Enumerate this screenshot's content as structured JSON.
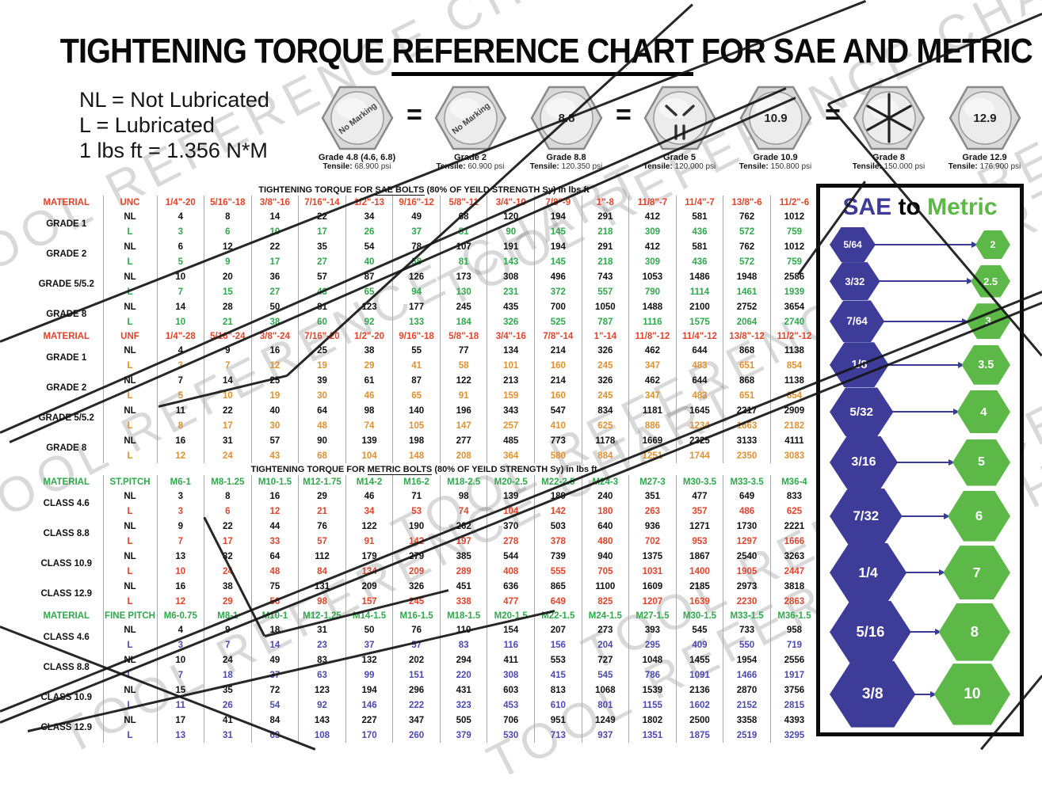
{
  "title": {
    "pre": "TIGHTENING TORQUE ",
    "underline": "REFERENCE CHART",
    "post": " FOR SAE AND METRIC BOLTS"
  },
  "legend": {
    "line1": "NL = Not Lubricated",
    "line2": "L = Lubricated",
    "line3": "1 lbs ft = 1.356 N*M"
  },
  "watermark": {
    "text": "TOOL REFERENCE CHART"
  },
  "bolts": [
    {
      "marking": "No Marking",
      "mark_style": "label-rotated",
      "grade": "Grade 4.8 (4.6, 6.8)",
      "tensile_label": "Tensile:",
      "tensile": "68.900 psi",
      "eq_after": true
    },
    {
      "marking": "No Marking",
      "mark_style": "label-rotated",
      "grade": "Grade 2",
      "tensile_label": "Tensile:",
      "tensile": "60.900 psi",
      "eq_after": false
    },
    {
      "marking": "8.8",
      "mark_style": "label",
      "grade": "Grade 8.8",
      "tensile_label": "Tensile:",
      "tensile": "120.350 psi",
      "eq_after": true
    },
    {
      "marking": "3 radial dashes",
      "mark_style": "marks-3",
      "grade": "Grade 5",
      "tensile_label": "Tensile:",
      "tensile": "120.000 psi",
      "eq_after": false
    },
    {
      "marking": "10.9",
      "mark_style": "label",
      "grade": "Grade 10.9",
      "tensile_label": "Tensile:",
      "tensile": "150.800 psi",
      "eq_after": true
    },
    {
      "marking": "6 radial dashes",
      "mark_style": "marks-6",
      "grade": "Grade 8",
      "tensile_label": "Tensile:",
      "tensile": "150.000 psi",
      "eq_after": false
    },
    {
      "marking": "12.9",
      "mark_style": "label",
      "grade": "Grade 12.9",
      "tensile_label": "Tensile:",
      "tensile": "176.900 psi",
      "eq_after": false
    }
  ],
  "table": {
    "row_labels": {
      "nl": "NL",
      "l": "L"
    },
    "colors": {
      "sae_header": "#e2442b",
      "metric_header": "#2fa94c",
      "unc_l": "#2fa94c",
      "unf_l": "#e09130",
      "st_l": "#e2442b",
      "fine_l": "#4c49b0",
      "nl_text": "#111111"
    },
    "sections": [
      {
        "title": {
          "pre": "TIGHTENING TORQUE FOR ",
          "underline": "SAE BOLTS",
          "post": " (80% OF YEILD STRENGTH Sy) in lbs ft"
        },
        "header_color": "#e2442b",
        "l_color": "#2fa94c",
        "header": [
          "MATERIAL",
          "UNC",
          "1/4\"-20",
          "5/16\"-18",
          "3/8\"-16",
          "7/16\"-14",
          "1/2\"-13",
          "9/16\"-12",
          "5/8\"-11",
          "3/4\"-10",
          "7/8\"-9",
          "1\"-8",
          "11/8\"-7",
          "11/4\"-7",
          "13/8\"-6",
          "11/2\"-6"
        ],
        "groups": [
          {
            "label": "GRADE 1",
            "nl": [
              4,
              8,
              14,
              22,
              34,
              49,
              68,
              120,
              194,
              291,
              412,
              581,
              762,
              1012
            ],
            "l": [
              3,
              6,
              10,
              17,
              26,
              37,
              51,
              90,
              145,
              218,
              309,
              436,
              572,
              759
            ]
          },
          {
            "label": "GRADE 2",
            "nl": [
              6,
              12,
              22,
              35,
              54,
              78,
              107,
              191,
              194,
              291,
              412,
              581,
              762,
              1012
            ],
            "l": [
              5,
              9,
              17,
              27,
              40,
              58,
              81,
              143,
              145,
              218,
              309,
              436,
              572,
              759
            ]
          },
          {
            "label": "GRADE 5/5.2",
            "nl": [
              10,
              20,
              36,
              57,
              87,
              126,
              173,
              308,
              496,
              743,
              1053,
              1486,
              1948,
              2586
            ],
            "l": [
              7,
              15,
              27,
              43,
              65,
              94,
              130,
              231,
              372,
              557,
              790,
              1114,
              1461,
              1939
            ]
          },
          {
            "label": "GRADE 8",
            "nl": [
              14,
              28,
              50,
              81,
              123,
              177,
              245,
              435,
              700,
              1050,
              1488,
              2100,
              2752,
              3654
            ],
            "l": [
              10,
              21,
              38,
              60,
              92,
              133,
              184,
              326,
              525,
              787,
              1116,
              1575,
              2064,
              2740
            ]
          }
        ]
      },
      {
        "title": null,
        "header_color": "#e2442b",
        "l_color": "#e09130",
        "header": [
          "MATERIAL",
          "UNF",
          "1/4\"-28",
          "5/16\"-24",
          "3/8\"-24",
          "7/16\"-20",
          "1/2\"-20",
          "9/16\"-18",
          "5/8\"-18",
          "3/4\"-16",
          "7/8\"-14",
          "1\"-14",
          "11/8\"-12",
          "11/4\"-12",
          "13/8\"-12",
          "11/2\"-12"
        ],
        "groups": [
          {
            "label": "GRADE 1",
            "nl": [
              4,
              9,
              16,
              25,
              38,
              55,
              77,
              134,
              214,
              326,
              462,
              644,
              868,
              1138
            ],
            "l": [
              3,
              7,
              12,
              19,
              29,
              41,
              58,
              101,
              160,
              245,
              347,
              483,
              651,
              854
            ]
          },
          {
            "label": "GRADE 2",
            "nl": [
              7,
              14,
              25,
              39,
              61,
              87,
              122,
              213,
              214,
              326,
              462,
              644,
              868,
              1138
            ],
            "l": [
              5,
              10,
              19,
              30,
              46,
              65,
              91,
              159,
              160,
              245,
              347,
              483,
              651,
              854
            ]
          },
          {
            "label": "GRADE 5/5.2",
            "nl": [
              11,
              22,
              40,
              64,
              98,
              140,
              196,
              343,
              547,
              834,
              1181,
              1645,
              2217,
              2909
            ],
            "l": [
              8,
              17,
              30,
              48,
              74,
              105,
              147,
              257,
              410,
              625,
              886,
              1234,
              1663,
              2182
            ]
          },
          {
            "label": "GRADE 8",
            "nl": [
              16,
              31,
              57,
              90,
              139,
              198,
              277,
              485,
              773,
              1178,
              1669,
              2325,
              3133,
              4111
            ],
            "l": [
              12,
              24,
              43,
              68,
              104,
              148,
              208,
              364,
              580,
              884,
              1251,
              1744,
              2350,
              3083
            ]
          }
        ]
      },
      {
        "title": {
          "pre": "TIGHTENING TORQUE FOR ",
          "underline": "METRIC BOLTS",
          "post": " (80% OF YEILD STRENGTH Sy) in lbs ft"
        },
        "header_color": "#2fa94c",
        "l_color": "#e2442b",
        "header": [
          "MATERIAL",
          "ST.PITCH",
          "M6-1",
          "M8-1.25",
          "M10-1.5",
          "M12-1.75",
          "M14-2",
          "M16-2",
          "M18-2.5",
          "M20-2.5",
          "M22-2.5",
          "M24-3",
          "M27-3",
          "M30-3.5",
          "M33-3.5",
          "M36-4"
        ],
        "groups": [
          {
            "label": "CLASS 4.6",
            "nl": [
              3,
              8,
              16,
              29,
              46,
              71,
              98,
              139,
              189,
              240,
              351,
              477,
              649,
              833
            ],
            "l": [
              3,
              6,
              12,
              21,
              34,
              53,
              74,
              104,
              142,
              180,
              263,
              357,
              486,
              625
            ]
          },
          {
            "label": "CLASS 8.8",
            "nl": [
              9,
              22,
              44,
              76,
              122,
              190,
              262,
              370,
              503,
              640,
              936,
              1271,
              1730,
              2221
            ],
            "l": [
              7,
              17,
              33,
              57,
              91,
              142,
              197,
              278,
              378,
              480,
              702,
              953,
              1297,
              1666
            ]
          },
          {
            "label": "CLASS 10.9",
            "nl": [
              13,
              32,
              64,
              112,
              179,
              279,
              385,
              544,
              739,
              940,
              1375,
              1867,
              2540,
              3263
            ],
            "l": [
              10,
              24,
              48,
              84,
              134,
              209,
              289,
              408,
              555,
              705,
              1031,
              1400,
              1905,
              2447
            ]
          },
          {
            "label": "CLASS 12.9",
            "nl": [
              16,
              38,
              75,
              131,
              209,
              326,
              451,
              636,
              865,
              1100,
              1609,
              2185,
              2973,
              3818
            ],
            "l": [
              12,
              29,
              56,
              98,
              157,
              245,
              338,
              477,
              649,
              825,
              1207,
              1639,
              2230,
              2863
            ]
          }
        ]
      },
      {
        "title": null,
        "header_color": "#2fa94c",
        "l_color": "#4c49b0",
        "header": [
          "MATERIAL",
          "FINE PITCH",
          "M6-0.75",
          "M8-1",
          "M10-1",
          "M12-1.25",
          "M14-1.5",
          "M16-1.5",
          "M18-1.5",
          "M20-1.5",
          "M22-1.5",
          "M24-1.5",
          "M27-1.5",
          "M30-1.5",
          "M33-1.5",
          "M36-1.5"
        ],
        "groups": [
          {
            "label": "CLASS 4.6",
            "nl": [
              4,
              9,
              18,
              31,
              50,
              76,
              110,
              154,
              207,
              273,
              393,
              545,
              733,
              958
            ],
            "l": [
              3,
              7,
              14,
              23,
              37,
              57,
              83,
              116,
              156,
              204,
              295,
              409,
              550,
              719
            ]
          },
          {
            "label": "CLASS 8.8",
            "nl": [
              10,
              24,
              49,
              83,
              132,
              202,
              294,
              411,
              553,
              727,
              1048,
              1455,
              1954,
              2556
            ],
            "l": [
              7,
              18,
              37,
              63,
              99,
              151,
              220,
              308,
              415,
              545,
              786,
              1091,
              1466,
              1917
            ]
          },
          {
            "label": "CLASS 10.9",
            "nl": [
              15,
              35,
              72,
              123,
              194,
              296,
              431,
              603,
              813,
              1068,
              1539,
              2136,
              2870,
              3756
            ],
            "l": [
              11,
              26,
              54,
              92,
              146,
              222,
              323,
              453,
              610,
              801,
              1155,
              1602,
              2152,
              2815
            ]
          },
          {
            "label": "CLASS 12.9",
            "nl": [
              17,
              41,
              84,
              143,
              227,
              347,
              505,
              706,
              951,
              1249,
              1802,
              2500,
              3358,
              4393
            ],
            "l": [
              13,
              31,
              63,
              108,
              170,
              260,
              379,
              530,
              713,
              937,
              1351,
              1875,
              2519,
              3295
            ]
          }
        ]
      }
    ]
  },
  "sidebar": {
    "title_sae": "SAE",
    "title_to": "to",
    "title_metric": "Metric",
    "colors": {
      "sae_blue": "#3e3c99",
      "metric_green": "#5cb847",
      "arrow": "#3a3b97"
    },
    "rows": [
      {
        "sae": "5/64",
        "metric": "2"
      },
      {
        "sae": "3/32",
        "metric": "2.5"
      },
      {
        "sae": "7/64",
        "metric": "3"
      },
      {
        "sae": "1/8",
        "metric": "3.5"
      },
      {
        "sae": "5/32",
        "metric": "4"
      },
      {
        "sae": "3/16",
        "metric": "5"
      },
      {
        "sae": "7/32",
        "metric": "6"
      },
      {
        "sae": "1/4",
        "metric": "7"
      },
      {
        "sae": "5/16",
        "metric": "8"
      },
      {
        "sae": "3/8",
        "metric": "10"
      }
    ]
  }
}
